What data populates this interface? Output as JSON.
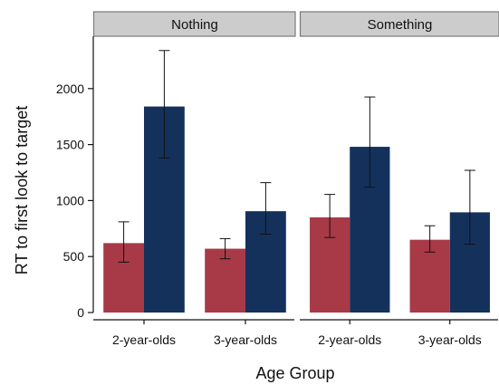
{
  "chart_data": {
    "type": "bar",
    "ylabel": "RT to first look to target",
    "xlabel": "Age Group",
    "ylim": [
      0,
      2400
    ],
    "yticks": [
      0,
      500,
      1000,
      1500,
      2000
    ],
    "colors": [
      "#a83a48",
      "#14315c"
    ],
    "panels": [
      {
        "title": "Nothing",
        "categories": [
          "2-year-olds",
          "3-year-olds"
        ],
        "series": [
          {
            "values": [
              620,
              570
            ],
            "lower": [
              450,
              480
            ],
            "upper": [
              810,
              660
            ]
          },
          {
            "values": [
              1840,
              905
            ],
            "lower": [
              1380,
              700
            ],
            "upper": [
              2340,
              1160
            ]
          }
        ]
      },
      {
        "title": "Something",
        "categories": [
          "2-year-olds",
          "3-year-olds"
        ],
        "series": [
          {
            "values": [
              850,
              650
            ],
            "lower": [
              670,
              540
            ],
            "upper": [
              1055,
              775
            ]
          },
          {
            "values": [
              1480,
              895
            ],
            "lower": [
              1120,
              610
            ],
            "upper": [
              1925,
              1270
            ]
          }
        ]
      }
    ]
  }
}
